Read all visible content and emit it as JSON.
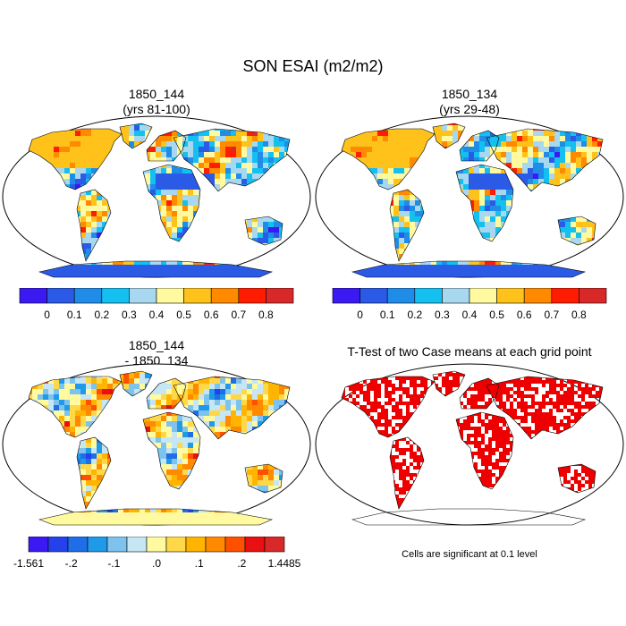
{
  "chart_data": [
    {
      "type": "heatmap",
      "projection": "robinson-world",
      "title": "1850_144",
      "subtitle": "(yrs 81-100)",
      "colorbar": {
        "colors": [
          "#3a19f2",
          "#2a5ae6",
          "#1f8de8",
          "#14c0f0",
          "#a8d8f0",
          "#fffaa0",
          "#ffc21a",
          "#ff8a00",
          "#ff1c00",
          "#d82828"
        ],
        "tick_labels": [
          "0",
          "0.1",
          "0.2",
          "0.3",
          "0.4",
          "0.5",
          "0.6",
          "0.7",
          "0.8"
        ]
      }
    },
    {
      "type": "heatmap",
      "projection": "robinson-world",
      "title": "1850_134",
      "subtitle": "(yrs 29-48)",
      "colorbar": {
        "colors": [
          "#3a19f2",
          "#2a5ae6",
          "#1f8de8",
          "#14c0f0",
          "#a8d8f0",
          "#fffaa0",
          "#ffc21a",
          "#ff8a00",
          "#ff1c00",
          "#d82828"
        ],
        "tick_labels": [
          "0",
          "0.1",
          "0.2",
          "0.3",
          "0.4",
          "0.5",
          "0.6",
          "0.7",
          "0.8"
        ]
      }
    },
    {
      "type": "heatmap",
      "projection": "robinson-world",
      "title": "1850_144",
      "subtitle": "- 1850_134",
      "colorbar": {
        "colors": [
          "#3a19f2",
          "#2541ec",
          "#1f6ee8",
          "#1f9ae8",
          "#7ec2ee",
          "#c6e6f4",
          "#fffaa0",
          "#ffd84a",
          "#ffb500",
          "#ff8a00",
          "#ff5000",
          "#e81010",
          "#d82828"
        ],
        "tick_labels": [
          "-1.561",
          "-.2",
          "-.1",
          ".0",
          ".1",
          ".2",
          "1.4485"
        ]
      }
    },
    {
      "type": "heatmap",
      "projection": "robinson-world",
      "title": "T-Test of two Case means at each grid point",
      "note": "Cells are significant at 0.1 level",
      "color": "#ee0000"
    }
  ],
  "main_title": "SON ESAI (m2/m2)"
}
